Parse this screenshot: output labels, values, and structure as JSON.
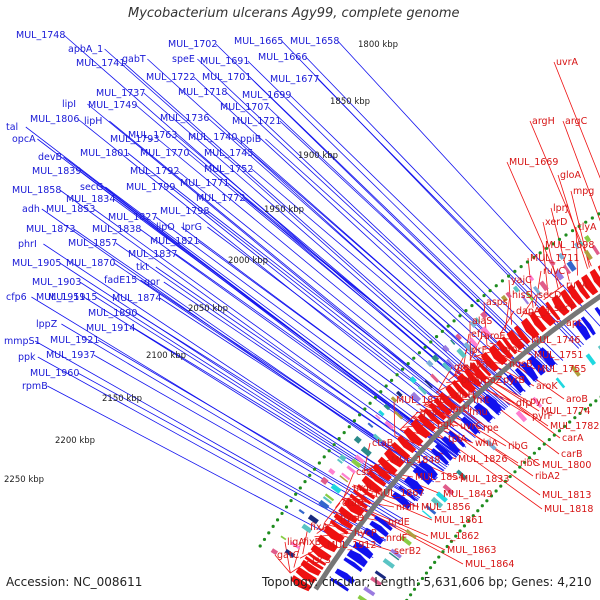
{
  "map": {
    "title": "Mycobacterium ulcerans Agy99, complete genome",
    "accession": "Accession: NC_008611",
    "summary": "Topology: circular; Length: 5,631,606 bp; Genes: 4,210",
    "scale_labels": [
      "1800 kbp",
      "1850 kbp",
      "1900 kbp",
      "1950 kbp",
      "2000 kbp",
      "2050 kbp",
      "2100 kbp",
      "2150 kbp",
      "2200 kbp",
      "2250 kbp"
    ],
    "colors": {
      "forward_genes": "#ee1111",
      "reverse_genes": "#1111ee",
      "backbone": "#777777",
      "scale_dots": "#1e8c1e",
      "forward_label": "#d61414",
      "reverse_label": "#1a1ad6"
    },
    "left_labels": [
      "MUL_1748",
      "apbA_1",
      "MUL_1741",
      "gabT",
      "MUL_1702",
      "speE",
      "MUL_1691",
      "MUL_1665",
      "MUL_1658",
      "MUL_1666",
      "MUL_1722",
      "MUL_1701",
      "MUL_1677",
      "MUL_1737",
      "MUL_1718",
      "MUL_1699",
      "MUL_1749",
      "MUL_1707",
      "lipI",
      "MUL_1806",
      "lipH",
      "MUL_1736",
      "MUL_1721",
      "tal",
      "opcA",
      "MUL_1793",
      "MUL_1763",
      "MUL_1740",
      "ppiB",
      "MUL_1801",
      "MUL_1770",
      "MUL_1745",
      "devB",
      "MUL_1839",
      "MUL_1792",
      "MUL_1752",
      "MUL_1771",
      "MUL_1858",
      "secG",
      "MUL_1834",
      "MUL_1799",
      "MUL_1772",
      "adh",
      "MUL_1853",
      "MUL_1827",
      "MUL_1798",
      "MUL_1873",
      "MUL_1838",
      "lipO",
      "lprG",
      "phrI",
      "MUL_1857",
      "MUL_1821",
      "MUL_1870",
      "MUL_1837",
      "MUL_1905",
      "MUL_1903",
      "fadE15",
      "tkt",
      "qor",
      "MUL_1919",
      "MUL_5115",
      "MUL_1874",
      "cfp6",
      "MUL_1890",
      "lppZ",
      "MUL_1914",
      "mmpS1",
      "MUL_1921",
      "ppk",
      "MUL_1937",
      "MUL_1960",
      "rpmB"
    ],
    "right_labels": [
      "uvrA",
      "argH",
      "argC",
      "MUL_1669",
      "gloA",
      "mpg",
      "lprJ",
      "xerD",
      "tlyA",
      "MUL_1698",
      "MUL_1711",
      "ruvC",
      "ruvA",
      "yajC",
      "hisS",
      "secD",
      "dapA_1",
      "secF",
      "apt",
      "asps",
      "alaS",
      "MUL_1746",
      "efp",
      "aroE",
      "MUL_1751",
      "lprF",
      "aroF",
      "gmk",
      "pyrR",
      "nusB",
      "MUL_1755",
      "priA",
      "rpoZ",
      "pyrB",
      "aroK",
      "ribH",
      "fmt",
      "dfp",
      "pyrC",
      "aroB",
      "MUL_1836",
      "lprH",
      "fmu",
      "pyrF",
      "MUL_1774",
      "gap",
      "uvrC",
      "rpe",
      "MUL_1782",
      "pgk",
      "whiA",
      "carA",
      "ctaB",
      "tpiA",
      "ribG",
      "MUL_1848",
      "MUL_1826",
      "ribC",
      "carB",
      "csd",
      "MUL_1854",
      "MUL_1833",
      "ribA2",
      "MUL_1800",
      "nrdI",
      "MUL_1867",
      "MUL_1849",
      "ctaD",
      "nrdH",
      "MUL_1856",
      "MUL_1813",
      "hycD",
      "nrdE",
      "MUL_1861",
      "MUL_1818",
      "fixA",
      "hycP",
      "MUL_1862",
      "ligA",
      "fixB",
      "nrdF",
      "gatC",
      "MUL_1912",
      "serB2",
      "MUL_1863",
      "iscS",
      "MUL_1864"
    ]
  }
}
